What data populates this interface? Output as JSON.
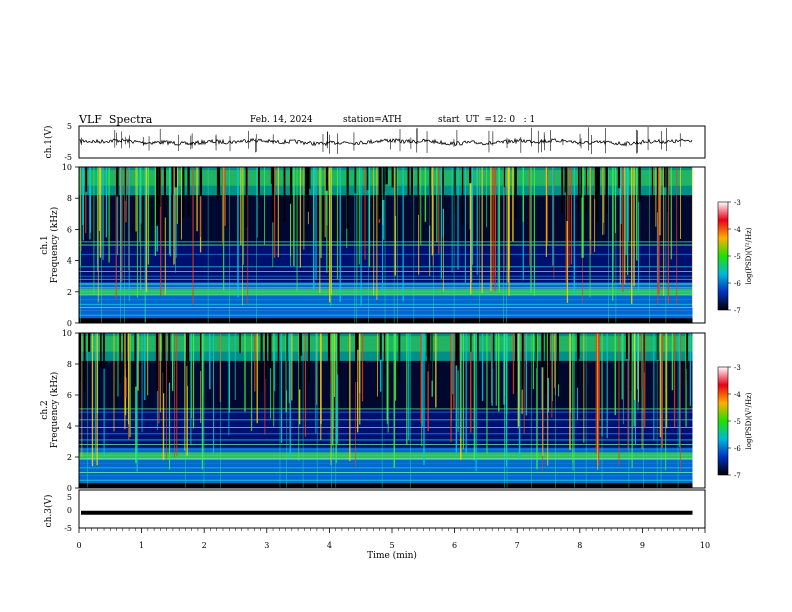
{
  "header": {
    "title": "VLF  Spectra",
    "date": "Feb. 14, 2024",
    "station": "station=ATH",
    "start_label": "start  UT  =",
    "start_value": "12: 0   : 1"
  },
  "colorbar": {
    "label": "log(PSD)(V²/Hz)",
    "ticks": [
      "-3",
      "-4",
      "-5",
      "-6",
      "-7"
    ],
    "colors": [
      "#ffffff",
      "#e8001a",
      "#ffae00",
      "#20e000",
      "#00b8d8",
      "#0030c0",
      "#000000"
    ]
  },
  "chart_data": [
    {
      "type": "line",
      "name": "ch1-waveform",
      "ylabel": "ch.1(V)",
      "ylim": [
        -5,
        5
      ],
      "yticks": [
        "5",
        "-5"
      ],
      "xlim": [
        0,
        10
      ],
      "baseline_v": 0,
      "visible_until_min": 9.8
    },
    {
      "type": "heatmap",
      "name": "ch1-spectrogram",
      "ylabel_top": "ch.1",
      "ylabel": "Frequency  (kHz)",
      "ylim": [
        0,
        10
      ],
      "yticks": [
        "0",
        "2",
        "4",
        "6",
        "8",
        "10"
      ],
      "xlim": [
        0,
        10
      ],
      "colorbar_range": [
        -7,
        -3
      ],
      "visible_until_min": 9.8,
      "bands_khz": [
        0.5,
        0.8,
        1.0,
        1.2,
        1.5,
        1.8,
        2.0,
        2.2,
        2.5,
        2.8,
        3.0,
        3.3,
        3.6,
        4.4,
        5.0,
        5.2
      ]
    },
    {
      "type": "heatmap",
      "name": "ch2-spectrogram",
      "ylabel_top": "ch.2",
      "ylabel": "Frequency  (kHz)",
      "ylim": [
        0,
        10
      ],
      "yticks": [
        "0",
        "2",
        "4",
        "6",
        "8",
        "10"
      ],
      "xlim": [
        0,
        10
      ],
      "colorbar_range": [
        -7,
        -3
      ],
      "visible_until_min": 9.8,
      "bands_khz": [
        0.5,
        0.8,
        1.0,
        1.3,
        1.6,
        1.9,
        2.1,
        2.5,
        2.8,
        3.1,
        3.5,
        3.9,
        4.4,
        4.9,
        5.1
      ]
    },
    {
      "type": "line",
      "name": "ch3-waveform",
      "ylabel": "ch.3(V)",
      "ylim": [
        -5,
        5
      ],
      "yticks": [
        "5",
        "0",
        "-5"
      ],
      "xlim": [
        0,
        10
      ],
      "constant_v": -1,
      "visible_until_min": 9.8
    }
  ],
  "xaxis": {
    "label": "Time  (min)",
    "ticks": [
      "0",
      "1",
      "2",
      "3",
      "4",
      "5",
      "6",
      "7",
      "8",
      "9",
      "10"
    ]
  }
}
